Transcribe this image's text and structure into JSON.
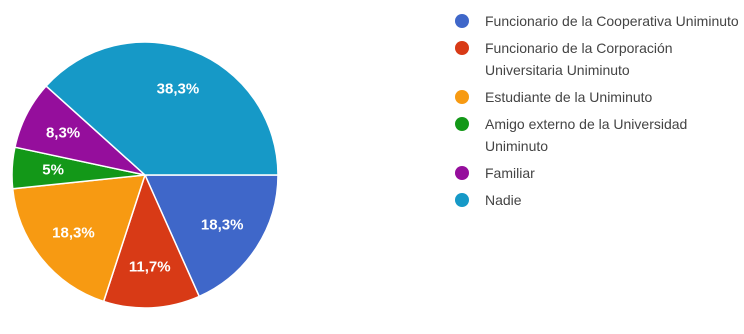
{
  "chart_data": {
    "type": "pie",
    "slices": [
      {
        "name": "Funcionario de la Cooperativa Uniminuto",
        "value": 18.3,
        "label": "18,3%",
        "color": "#3f67c9"
      },
      {
        "name": "Funcionario de la Corporación Universitaria Uniminuto",
        "value": 11.7,
        "label": "11,7%",
        "color": "#d83a16"
      },
      {
        "name": "Estudiante de la Uniminuto",
        "value": 18.3,
        "label": "18,3%",
        "color": "#f79a12"
      },
      {
        "name": "Amigo externo de la Universidad Uniminuto",
        "value": 5,
        "label": "5%",
        "color": "#139818"
      },
      {
        "name": "Familiar",
        "value": 8.3,
        "label": "8,3%",
        "color": "#950e9c"
      },
      {
        "name": "Nadie",
        "value": 38.3,
        "label": "38,3%",
        "color": "#1699c7"
      }
    ],
    "legend_position": "right",
    "start": "3 o'clock, clockwise"
  }
}
